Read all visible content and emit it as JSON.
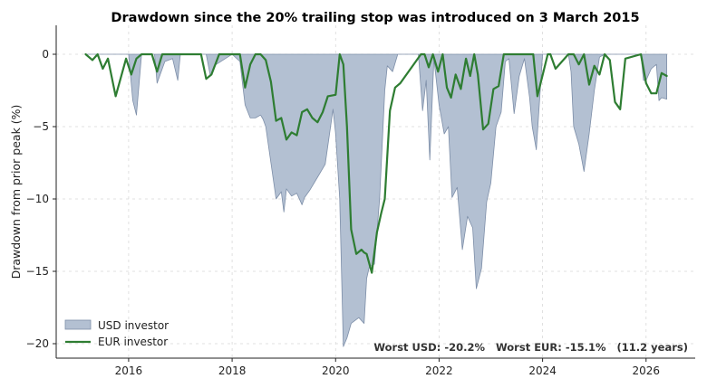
{
  "chart_data": {
    "type": "area",
    "title": "Drawdown since the 20% trailing stop was introduced on 3 March 2015",
    "xlabel": "",
    "ylabel": "Drawdown from prior peak (%)",
    "xlim": [
      2014.6,
      2026.95
    ],
    "ylim": [
      -21,
      2
    ],
    "x_ticks": [
      2016,
      2018,
      2020,
      2022,
      2024,
      2026
    ],
    "x_tick_labels": [
      "2016",
      "2018",
      "2020",
      "2022",
      "2024",
      "2026"
    ],
    "y_ticks": [
      0,
      -5,
      -10,
      -15,
      -20
    ],
    "y_tick_labels": [
      "0",
      "−5",
      "−10",
      "−15",
      "−20"
    ],
    "grid": true,
    "legend_position": "lower-left",
    "colors": {
      "usd_fill": "#b3c0d2",
      "usd_edge": "#7d8ea8",
      "eur_line": "#2e7d32"
    },
    "series": [
      {
        "name": "USD investor",
        "style": "filled area",
        "x": [
          2015.17,
          2015.5,
          2015.75,
          2016.0,
          2016.08,
          2016.15,
          2016.25,
          2016.5,
          2016.55,
          2016.7,
          2016.85,
          2016.95,
          2017.0,
          2017.5,
          2017.58,
          2017.65,
          2018.0,
          2018.15,
          2018.2,
          2018.25,
          2018.35,
          2018.45,
          2018.55,
          2018.6,
          2018.65,
          2018.75,
          2018.85,
          2018.95,
          2019.0,
          2019.05,
          2019.15,
          2019.25,
          2019.35,
          2019.4,
          2019.5,
          2019.65,
          2019.8,
          2019.95,
          2020.0,
          2020.08,
          2020.15,
          2020.22,
          2020.3,
          2020.45,
          2020.55,
          2020.6,
          2020.65,
          2020.75,
          2020.85,
          2020.95,
          2021.0,
          2021.1,
          2021.2,
          2021.6,
          2021.68,
          2021.75,
          2021.82,
          2021.9,
          2022.0,
          2022.1,
          2022.18,
          2022.25,
          2022.35,
          2022.45,
          2022.55,
          2022.65,
          2022.72,
          2022.82,
          2022.92,
          2023.0,
          2023.1,
          2023.2,
          2023.28,
          2023.35,
          2023.45,
          2023.55,
          2023.65,
          2023.75,
          2023.8,
          2023.88,
          2024.0,
          2024.5,
          2024.55,
          2024.6,
          2024.7,
          2024.8,
          2024.9,
          2025.0,
          2025.1,
          2025.2,
          2025.5,
          2025.9,
          2025.95,
          2026.0,
          2026.1,
          2026.2,
          2026.25,
          2026.3,
          2026.4
        ],
        "y": [
          0,
          0,
          0,
          0,
          -3.2,
          -4.2,
          0,
          0,
          -2.0,
          -0.5,
          -0.3,
          -1.8,
          0,
          0,
          -1.5,
          -0.8,
          0,
          -0.5,
          -2.0,
          -3.5,
          -4.4,
          -4.4,
          -4.2,
          -4.5,
          -5.0,
          -7.5,
          -10.0,
          -9.5,
          -10.9,
          -9.3,
          -9.8,
          -9.6,
          -10.4,
          -9.9,
          -9.4,
          -8.5,
          -7.6,
          -3.8,
          -5.5,
          -10.0,
          -20.2,
          -19.6,
          -18.6,
          -18.2,
          -18.6,
          -15.5,
          -14.7,
          -14.5,
          -10.0,
          -2.5,
          -0.8,
          -1.2,
          0,
          0,
          -3.9,
          -1.8,
          -7.3,
          -0.3,
          -3.5,
          -5.5,
          -5.0,
          -9.9,
          -9.2,
          -13.5,
          -11.2,
          -12.0,
          -16.2,
          -14.8,
          -10.2,
          -8.9,
          -5.0,
          -4.0,
          -0.5,
          -0.3,
          -4.1,
          -1.5,
          -0.3,
          -3.0,
          -5.0,
          -6.6,
          0,
          0,
          -1.2,
          -5.0,
          -6.2,
          -8.1,
          -5.5,
          -2.5,
          -0.2,
          0,
          0,
          0,
          -1.8,
          -1.8,
          -1.0,
          -0.7,
          -3.2,
          -3.0,
          -3.1
        ]
      },
      {
        "name": "EUR investor",
        "style": "line",
        "x": [
          2015.17,
          2015.3,
          2015.4,
          2015.5,
          2015.6,
          2015.75,
          2015.95,
          2016.05,
          2016.15,
          2016.25,
          2016.45,
          2016.55,
          2016.65,
          2017.3,
          2017.4,
          2017.5,
          2017.6,
          2017.75,
          2018.0,
          2018.15,
          2018.25,
          2018.35,
          2018.45,
          2018.55,
          2018.65,
          2018.75,
          2018.85,
          2018.95,
          2019.05,
          2019.15,
          2019.25,
          2019.35,
          2019.45,
          2019.55,
          2019.65,
          2019.75,
          2019.85,
          2020.0,
          2020.08,
          2020.15,
          2020.22,
          2020.3,
          2020.4,
          2020.5,
          2020.55,
          2020.6,
          2020.7,
          2020.8,
          2020.88,
          2020.95,
          2021.05,
          2021.15,
          2021.25,
          2021.65,
          2021.72,
          2021.8,
          2021.88,
          2021.98,
          2022.07,
          2022.15,
          2022.23,
          2022.32,
          2022.42,
          2022.52,
          2022.6,
          2022.68,
          2022.75,
          2022.85,
          2022.95,
          2023.05,
          2023.15,
          2023.25,
          2023.35,
          2023.75,
          2023.82,
          2023.9,
          2024.1,
          2024.15,
          2024.25,
          2024.5,
          2024.6,
          2024.7,
          2024.8,
          2024.9,
          2025.0,
          2025.1,
          2025.2,
          2025.3,
          2025.4,
          2025.5,
          2025.6,
          2025.9,
          2026.0,
          2026.1,
          2026.2,
          2026.3,
          2026.4
        ],
        "y": [
          0,
          -0.4,
          0,
          -1.0,
          -0.3,
          -2.9,
          -0.3,
          -1.4,
          -0.3,
          0,
          0,
          -1.2,
          0,
          0,
          0,
          -1.7,
          -1.4,
          0,
          0,
          0,
          -2.3,
          -0.7,
          0,
          0,
          -0.4,
          -1.9,
          -4.6,
          -4.4,
          -5.9,
          -5.4,
          -5.6,
          -4.0,
          -3.8,
          -4.4,
          -4.7,
          -4.0,
          -2.9,
          -2.8,
          0,
          -0.7,
          -5.0,
          -12.1,
          -13.8,
          -13.5,
          -13.7,
          -13.8,
          -15.1,
          -12.3,
          -11.0,
          -10.0,
          -3.9,
          -2.3,
          -2.0,
          0,
          0,
          -0.9,
          0,
          -1.2,
          0,
          -2.3,
          -3.0,
          -1.4,
          -2.4,
          -0.3,
          -1.5,
          0,
          -1.4,
          -5.2,
          -4.8,
          -2.4,
          -2.2,
          0,
          0,
          0,
          0,
          -2.9,
          0,
          0,
          -1.0,
          0,
          0,
          -0.7,
          0,
          -2.1,
          -0.8,
          -1.4,
          0,
          -0.4,
          -3.3,
          -3.8,
          -0.3,
          0,
          -2.0,
          -2.7,
          -2.7,
          -1.3,
          -1.5
        ]
      }
    ],
    "annotation": "Worst USD: -20.2%   Worst EUR: -15.1%   (11.2 years)"
  }
}
